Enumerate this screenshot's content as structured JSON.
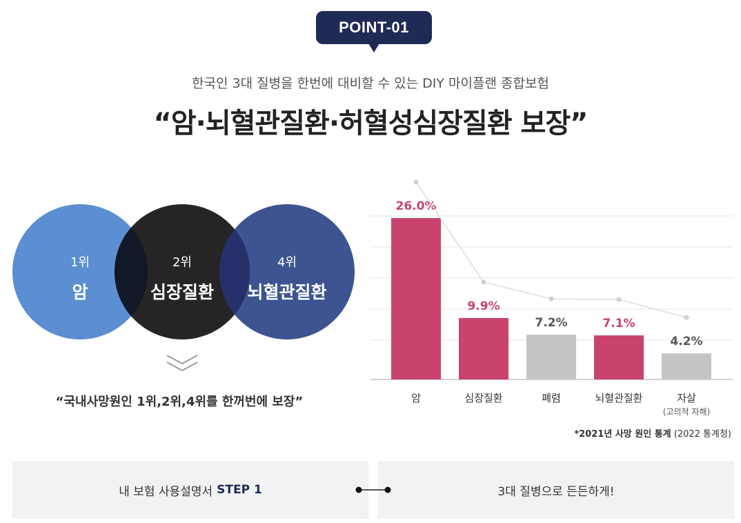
{
  "badge": "POINT-01",
  "subtitle": "한국인 3대 질병을 한번에 대비할 수 있는 DIY 마이플랜 종합보험",
  "headline": "“암·뇌혈관질환·허혈성심장질환 보장”",
  "venn": {
    "items": [
      {
        "rank": "1위",
        "name": "암",
        "color": "#5b8fd1"
      },
      {
        "rank": "2위",
        "name": "심장질환",
        "color": "#252525"
      },
      {
        "rank": "4위",
        "name": "뇌혈관질환",
        "color": "#3d5490"
      }
    ]
  },
  "caption": "“국내사망원인 1위,2위,4위를 한꺼번에 보장”",
  "chart_data": {
    "type": "bar",
    "categories": [
      "암",
      "심장질환",
      "폐렴",
      "뇌혈관질환",
      "자살"
    ],
    "category_sublabels": [
      "",
      "",
      "",
      "",
      "(고의적 자해)"
    ],
    "values": [
      26.0,
      9.9,
      7.2,
      7.1,
      4.2
    ],
    "value_labels": [
      "26.0%",
      "9.9%",
      "7.2%",
      "7.1%",
      "4.2%"
    ],
    "bar_colors": [
      "#c8446c",
      "#c8446c",
      "#c4c4c4",
      "#c8446c",
      "#c4c4c4"
    ],
    "label_colors": [
      "#c8446c",
      "#c8446c",
      "#555555",
      "#c8446c",
      "#555555"
    ],
    "trend_line": true,
    "ylim": [
      0,
      30
    ],
    "grid": true
  },
  "source": {
    "bold": "*2021년 사망 원인 통계",
    "rest": " (2022 통계청)"
  },
  "steps": {
    "left_text": "내 보험 사용설명서",
    "left_strong": "STEP 1",
    "right_text": "3대 질병으로 든든하게!"
  }
}
